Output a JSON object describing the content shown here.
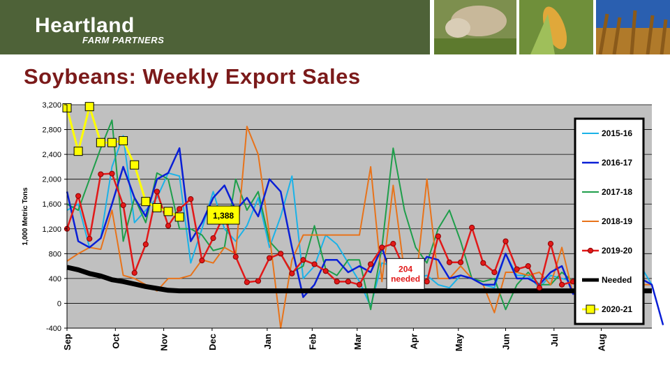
{
  "brand": {
    "name": "Heartland",
    "tagline": "FARM PARTNERS",
    "color": "#4e6238"
  },
  "slide": {
    "title": "Soybeans:  Weekly Export Sales",
    "title_color": "#7b1a1a"
  },
  "chart_data": {
    "type": "line",
    "title": "",
    "ylabel": "1,000 Metric Tons",
    "ylim": [
      -400,
      3200
    ],
    "yticks": [
      -400,
      0,
      400,
      800,
      1200,
      1600,
      2000,
      2400,
      2800,
      3200
    ],
    "ytick_labels": [
      "-400",
      "0",
      "400",
      "800",
      "1,200",
      "1,600",
      "2,000",
      "2,400",
      "2,800",
      "3,200"
    ],
    "x_unit": "week of marketing year",
    "xlim": [
      0,
      52
    ],
    "months": [
      {
        "label": "Sep",
        "week": 0
      },
      {
        "label": "Oct",
        "week": 4.3
      },
      {
        "label": "Nov",
        "week": 8.6
      },
      {
        "label": "Dec",
        "week": 12.9
      },
      {
        "label": "Jan",
        "week": 17.8
      },
      {
        "label": "Feb",
        "week": 21.8
      },
      {
        "label": "Mar",
        "week": 25.8
      },
      {
        "label": "Apr",
        "week": 30.8
      },
      {
        "label": "May",
        "week": 34.8
      },
      {
        "label": "Jun",
        "week": 39.0
      },
      {
        "label": "Jul",
        "week": 43.3
      },
      {
        "label": "Aug",
        "week": 47.5
      }
    ],
    "legend_position": "right",
    "series": [
      {
        "name": "2015-16",
        "color": "#1ab2e8",
        "width": 2,
        "marker": "none",
        "values": [
          1500,
          1600,
          900,
          1050,
          2200,
          2700,
          1300,
          1500,
          1700,
          2100,
          2050,
          650,
          1200,
          1800,
          1200,
          1000,
          1250,
          1700,
          900,
          1400,
          2050,
          400,
          600,
          1100,
          950,
          650,
          350,
          -50,
          650,
          600,
          550,
          400,
          450,
          300,
          250,
          450,
          400,
          300,
          250,
          800,
          450,
          450,
          250,
          450,
          400,
          350,
          300,
          750,
          800,
          700,
          700,
          600,
          300
        ]
      },
      {
        "name": "2016-17",
        "color": "#0a1fd6",
        "width": 2.5,
        "marker": "none",
        "values": [
          1800,
          1000,
          900,
          1050,
          1600,
          2200,
          1700,
          1400,
          2000,
          2100,
          2500,
          1000,
          1300,
          1700,
          1900,
          1500,
          1700,
          1400,
          2000,
          1800,
          900,
          100,
          300,
          700,
          700,
          500,
          600,
          500,
          900,
          350,
          450,
          500,
          750,
          700,
          400,
          450,
          400,
          300,
          300,
          800,
          400,
          400,
          300,
          500,
          600,
          150,
          400,
          100,
          300,
          400,
          250,
          400,
          300,
          -350
        ]
      },
      {
        "name": "2017-18",
        "color": "#1e9e4a",
        "width": 2,
        "marker": "none",
        "values": [
          1600,
          1500,
          2000,
          2500,
          2950,
          1000,
          1700,
          1300,
          2100,
          2000,
          1200,
          1200,
          1100,
          850,
          900,
          2000,
          1500,
          1800,
          1000,
          800,
          500,
          600,
          1250,
          550,
          450,
          700,
          700,
          -100,
          900,
          2500,
          1500,
          900,
          650,
          1200,
          1500,
          1000,
          400,
          350,
          400,
          -100,
          300,
          500,
          300,
          300,
          500,
          350,
          250,
          600,
          300,
          300,
          350,
          300
        ]
      },
      {
        "name": "2018-19",
        "color": "#e8731a",
        "width": 2,
        "marker": "none",
        "values": [
          680,
          800,
          900,
          870,
          1500,
          450,
          400,
          300,
          200,
          400,
          400,
          450,
          700,
          650,
          900,
          800,
          2850,
          2400,
          1100,
          -400,
          700,
          1100,
          1100,
          1100,
          1100,
          1100,
          1100,
          2200,
          350,
          1900,
          500,
          300,
          2000,
          400,
          400,
          600,
          400,
          300,
          -150,
          500,
          500,
          450,
          500,
          300,
          900,
          150,
          100,
          0,
          300,
          250,
          400,
          300,
          300
        ]
      },
      {
        "name": "2019-20",
        "color": "#e11919",
        "width": 2.5,
        "marker": "circle",
        "values": [
          1200,
          1730,
          1040,
          2080,
          2090,
          1580,
          490,
          950,
          1800,
          1250,
          1520,
          1680,
          690,
          1050,
          1440,
          750,
          340,
          360,
          730,
          800,
          480,
          700,
          630,
          520,
          350,
          350,
          300,
          630,
          900,
          960,
          550,
          300,
          350,
          1080,
          660,
          660,
          1220,
          650,
          500,
          1000,
          550,
          600,
          250,
          960,
          300,
          350,
          300,
          250
        ]
      },
      {
        "name": "Needed",
        "color": "#000000",
        "width": 7,
        "marker": "none",
        "values": [
          580,
          540,
          480,
          440,
          380,
          350,
          310,
          270,
          240,
          210,
          200,
          200,
          200,
          200,
          200,
          200,
          200,
          200,
          200,
          200,
          200,
          200,
          200,
          200,
          200,
          200,
          200,
          200,
          200,
          200,
          200,
          200,
          200,
          200,
          200,
          200,
          200,
          200,
          200,
          200,
          200,
          200,
          200,
          200,
          200,
          200,
          200,
          200,
          200,
          200,
          200,
          200,
          200
        ]
      },
      {
        "name": "2020-21",
        "color": "#ffff00",
        "width": 3,
        "marker": "square",
        "values": [
          3150,
          2450,
          3170,
          2590,
          2590,
          2620,
          2230,
          1640,
          1540,
          1480,
          1390
        ]
      }
    ],
    "annotations": [
      {
        "text": "1,388",
        "week": 12.6,
        "value": 1388,
        "style": "yellow-box"
      },
      {
        "text": "204 needed",
        "lines": [
          "204",
          "needed"
        ],
        "week": 30.1,
        "value": 204,
        "style": "red-text-box"
      }
    ]
  }
}
